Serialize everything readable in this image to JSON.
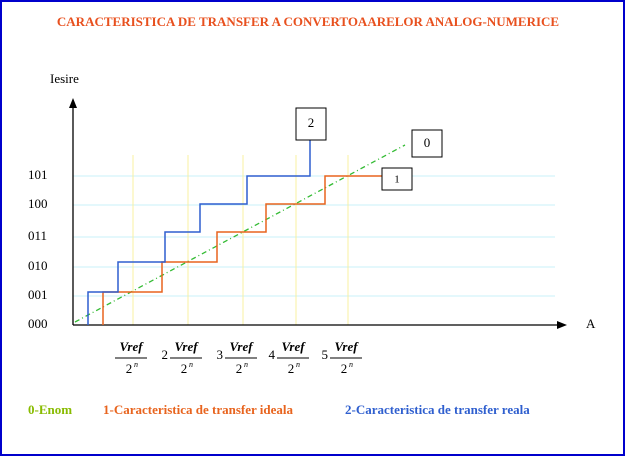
{
  "title": "CARACTERISTICA DE TRANSFER A CONVERTOAARELOR ANALOG-NUMERICE",
  "y_axis_label": "Iesire",
  "x_axis_label": "A",
  "y_levels": [
    "000",
    "001",
    "010",
    "011",
    "100",
    "101"
  ],
  "x_labels": [
    {
      "numerator": "Vref",
      "denominator": "2",
      "exponent": "n"
    },
    {
      "coefficient": "2",
      "numerator": "Vref",
      "denominator": "2",
      "exponent": "n"
    },
    {
      "coefficient": "3",
      "numerator": "Vref",
      "denominator": "2",
      "exponent": "n"
    },
    {
      "coefficient": "4",
      "numerator": "Vref",
      "denominator": "2",
      "exponent": "n"
    },
    {
      "coefficient": "5",
      "numerator": "Vref",
      "denominator": "2",
      "exponent": "n"
    }
  ],
  "callouts": [
    "2",
    "0",
    "1"
  ],
  "legend": [
    "0-Enom",
    "1-Caracteristica de transfer ideala",
    "2-Caracteristica de transfer reala"
  ]
}
